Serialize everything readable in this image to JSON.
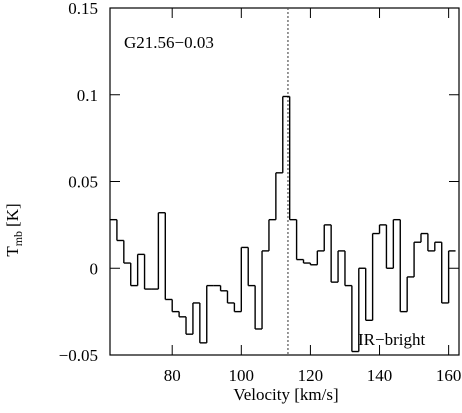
{
  "chart_data": {
    "type": "step",
    "annotation": "G21.56−0.03",
    "annotation2": "IR−bright",
    "x_label": "Velocity [km/s]",
    "y_label": "T",
    "y_label_sub": "mb",
    "y_label_unit": "[K]",
    "color": "#000000",
    "marker_x": 113.5,
    "channel_width": 2,
    "x": [
      63,
      65,
      67,
      69,
      71,
      73,
      75,
      77,
      79,
      81,
      83,
      85,
      87,
      89,
      91,
      93,
      95,
      97,
      99,
      101,
      103,
      105,
      107,
      109,
      111,
      113,
      115,
      117,
      119,
      121,
      123,
      125,
      127,
      129,
      131,
      133,
      135,
      137,
      139,
      141,
      143,
      145,
      147,
      149,
      151,
      153,
      155,
      157,
      159,
      161
    ],
    "values": [
      0.028,
      0.016,
      0.003,
      -0.01,
      0.008,
      -0.012,
      -0.012,
      0.032,
      -0.018,
      -0.025,
      -0.028,
      -0.038,
      -0.02,
      -0.043,
      -0.01,
      -0.01,
      -0.013,
      -0.02,
      -0.025,
      0.012,
      -0.01,
      -0.035,
      0.01,
      0.028,
      0.055,
      0.099,
      0.028,
      0.005,
      0.003,
      0.002,
      0.01,
      0.025,
      -0.008,
      0.01,
      -0.01,
      -0.048,
      0.0,
      -0.03,
      0.02,
      0.025,
      0.0,
      0.028,
      -0.025,
      -0.005,
      0.015,
      0.02,
      0.01,
      0.015,
      -0.02,
      0.01
    ],
    "xlim": [
      62,
      163
    ],
    "ylim": [
      -0.05,
      0.15
    ],
    "xticks": [
      80,
      100,
      120,
      140,
      160
    ],
    "yticks": [
      {
        "value": -0.05,
        "label": "−0.05"
      },
      0,
      0.05,
      0.1,
      0.15
    ]
  }
}
